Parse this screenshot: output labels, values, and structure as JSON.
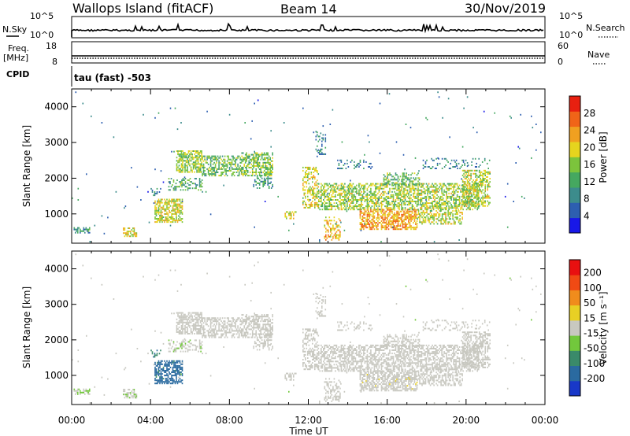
{
  "header": {
    "station": "Wallops Island (fitACF)",
    "beam": "Beam 14",
    "date": "30/Nov/2019"
  },
  "nsky_panel": {
    "left_label": "N.Sky",
    "right_label": "N.Search",
    "left_ticks": [
      "10^5",
      "10^0"
    ],
    "right_ticks": [
      "10^5",
      "10^0"
    ]
  },
  "freq_panel": {
    "left_label_line1": "Freq.",
    "left_label_line2": "[MHz]",
    "right_label": "Nave",
    "left_ticks": [
      "18",
      "8"
    ],
    "right_ticks": [
      "60",
      "0"
    ]
  },
  "cpid": {
    "label": "CPID",
    "text": "tau (fast) -503"
  },
  "colors": {
    "power_scale": [
      "#1818e8",
      "#2d5fb0",
      "#3c8c8c",
      "#45a860",
      "#7cc43c",
      "#e6d41e",
      "#f0a020",
      "#f06418",
      "#e82010"
    ],
    "velocity_scale": [
      "#1838c8",
      "#2a6aa0",
      "#3a8a6a",
      "#72c83c",
      "#c8c8c0",
      "#e8d024",
      "#f08c1c",
      "#f04a14",
      "#e81010"
    ]
  },
  "chart_data": [
    {
      "type": "heatmap",
      "name": "power",
      "ylabel": "Slant Range [km]",
      "ylim": [
        180,
        4500
      ],
      "xlim": [
        0,
        24
      ],
      "yticks": [
        "1000",
        "2000",
        "3000",
        "4000"
      ],
      "colorbar_label": "Power [dB]",
      "colorbar_ticks": [
        "4",
        "8",
        "12",
        "16",
        "20",
        "24",
        "28"
      ],
      "colorbar_range": [
        0,
        32
      ]
    },
    {
      "type": "heatmap",
      "name": "velocity",
      "ylabel": "Slant Range [km]",
      "ylim": [
        180,
        4500
      ],
      "xlim": [
        0,
        24
      ],
      "yticks": [
        "1000",
        "2000",
        "3000",
        "4000"
      ],
      "colorbar_label": "Velocity [m s⁻¹]",
      "colorbar_ticks": [
        "200",
        "100",
        "50",
        "15",
        "-15",
        "-50",
        "-100",
        "-200"
      ]
    }
  ],
  "xaxis": {
    "ticks": [
      "00:00",
      "04:00",
      "08:00",
      "12:00",
      "16:00",
      "20:00",
      "00:00"
    ],
    "label": "Time UT"
  }
}
